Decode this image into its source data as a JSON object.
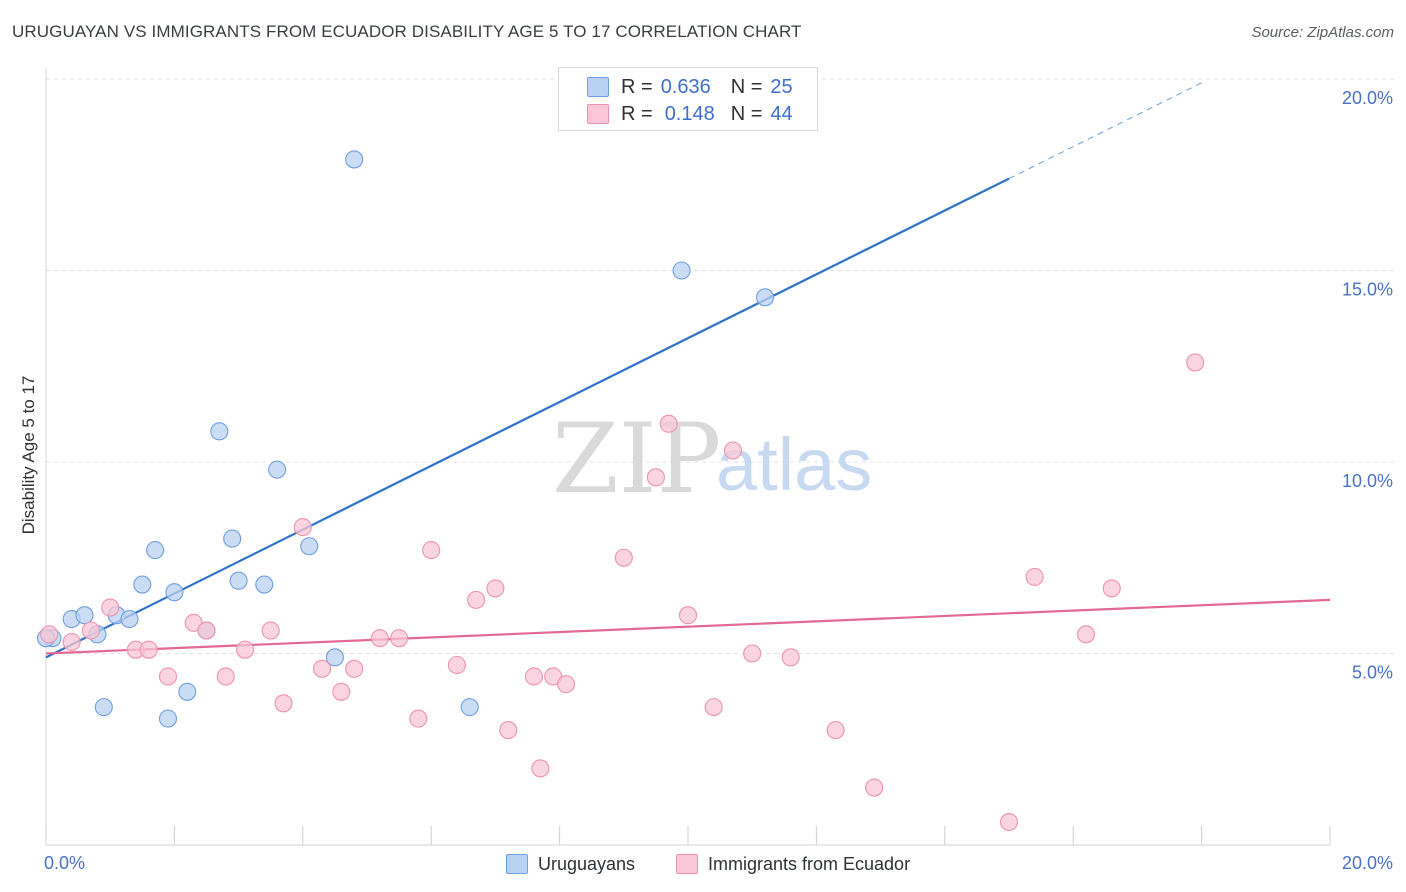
{
  "title": "URUGUAYAN VS IMMIGRANTS FROM ECUADOR DISABILITY AGE 5 TO 17 CORRELATION CHART",
  "source": "Source: ZipAtlas.com",
  "colors": {
    "blue_fill": "#b9d1f2",
    "blue_stroke": "#6f9fde",
    "blue_line": "#2e72cc",
    "pink_fill": "#f8c6d6",
    "pink_stroke": "#ec93b2",
    "pink_line": "#e46895",
    "grid": "#e1e1e1",
    "tick_label": "#4a72c4"
  },
  "legend": {
    "rows": [
      {
        "r_label": "R =",
        "r_value": "0.636",
        "n_label": "N =",
        "n_value": "25",
        "series": "blue"
      },
      {
        "r_label": "R =",
        "r_value": "0.148",
        "n_label": "N =",
        "n_value": "44",
        "series": "pink"
      }
    ]
  },
  "watermark": {
    "zip": "ZIP",
    "atlas": "atlas"
  },
  "chart_data": {
    "type": "scatter",
    "title": "URUGUAYAN VS IMMIGRANTS FROM ECUADOR DISABILITY AGE 5 TO 17 CORRELATION CHART",
    "xlabel": "",
    "ylabel": "Disability Age 5 to 17",
    "xlim": [
      0,
      20
    ],
    "ylim": [
      0,
      20
    ],
    "x_tick_labels": [
      {
        "value": 0,
        "label": "0.0%"
      },
      {
        "value": 20,
        "label": "20.0%"
      }
    ],
    "y_tick_labels": [
      {
        "value": 5,
        "label": "5.0%"
      },
      {
        "value": 10,
        "label": "10.0%"
      },
      {
        "value": 15,
        "label": "15.0%"
      },
      {
        "value": 20,
        "label": "20.0%"
      }
    ],
    "series": [
      {
        "name": "Uruguayans",
        "color": "blue",
        "trend": {
          "x0": 0,
          "y0": 4.9,
          "x1": 15.0,
          "y1": 17.4,
          "dashed_to_x": 18.0,
          "dashed_to_y": 19.9
        },
        "points": [
          [
            0.1,
            5.4
          ],
          [
            0.4,
            5.9
          ],
          [
            0.6,
            6.0
          ],
          [
            0.8,
            5.5
          ],
          [
            0.9,
            3.6
          ],
          [
            1.1,
            6.0
          ],
          [
            1.3,
            5.9
          ],
          [
            1.5,
            6.8
          ],
          [
            1.7,
            7.7
          ],
          [
            1.9,
            3.3
          ],
          [
            2.0,
            6.6
          ],
          [
            2.2,
            4.0
          ],
          [
            2.5,
            5.6
          ],
          [
            2.7,
            10.8
          ],
          [
            2.9,
            8.0
          ],
          [
            3.0,
            6.9
          ],
          [
            3.4,
            6.8
          ],
          [
            3.6,
            9.8
          ],
          [
            4.1,
            7.8
          ],
          [
            4.5,
            4.9
          ],
          [
            4.8,
            17.9
          ],
          [
            6.6,
            3.6
          ],
          [
            9.9,
            15.0
          ],
          [
            11.2,
            14.3
          ],
          [
            0.0,
            5.4
          ]
        ]
      },
      {
        "name": "Immigrants from Ecuador",
        "color": "pink",
        "trend": {
          "x0": 0,
          "y0": 5.0,
          "x1": 20,
          "y1": 6.4
        },
        "points": [
          [
            0.05,
            5.5
          ],
          [
            0.4,
            5.3
          ],
          [
            0.7,
            5.6
          ],
          [
            1.0,
            6.2
          ],
          [
            1.4,
            5.1
          ],
          [
            1.6,
            5.1
          ],
          [
            1.9,
            4.4
          ],
          [
            2.3,
            5.8
          ],
          [
            2.5,
            5.6
          ],
          [
            2.8,
            4.4
          ],
          [
            3.1,
            5.1
          ],
          [
            3.5,
            5.6
          ],
          [
            3.7,
            3.7
          ],
          [
            4.0,
            8.3
          ],
          [
            4.3,
            4.6
          ],
          [
            4.6,
            4.0
          ],
          [
            4.8,
            4.6
          ],
          [
            5.2,
            5.4
          ],
          [
            5.5,
            5.4
          ],
          [
            5.8,
            3.3
          ],
          [
            6.0,
            7.7
          ],
          [
            6.4,
            4.7
          ],
          [
            6.7,
            6.4
          ],
          [
            7.0,
            6.7
          ],
          [
            7.2,
            3.0
          ],
          [
            7.6,
            4.4
          ],
          [
            7.7,
            2.0
          ],
          [
            7.9,
            4.4
          ],
          [
            8.1,
            4.2
          ],
          [
            9.0,
            7.5
          ],
          [
            9.5,
            9.6
          ],
          [
            9.7,
            11.0
          ],
          [
            10.0,
            6.0
          ],
          [
            10.4,
            3.6
          ],
          [
            10.7,
            10.3
          ],
          [
            11.0,
            5.0
          ],
          [
            11.6,
            4.9
          ],
          [
            12.3,
            3.0
          ],
          [
            12.9,
            1.5
          ],
          [
            15.0,
            0.6
          ],
          [
            15.4,
            7.0
          ],
          [
            16.2,
            5.5
          ],
          [
            16.6,
            6.7
          ],
          [
            17.9,
            12.6
          ]
        ]
      }
    ]
  },
  "bottom_legend": [
    {
      "label": "Uruguayans",
      "color": "blue"
    },
    {
      "label": "Immigrants from Ecuador",
      "color": "pink"
    }
  ]
}
